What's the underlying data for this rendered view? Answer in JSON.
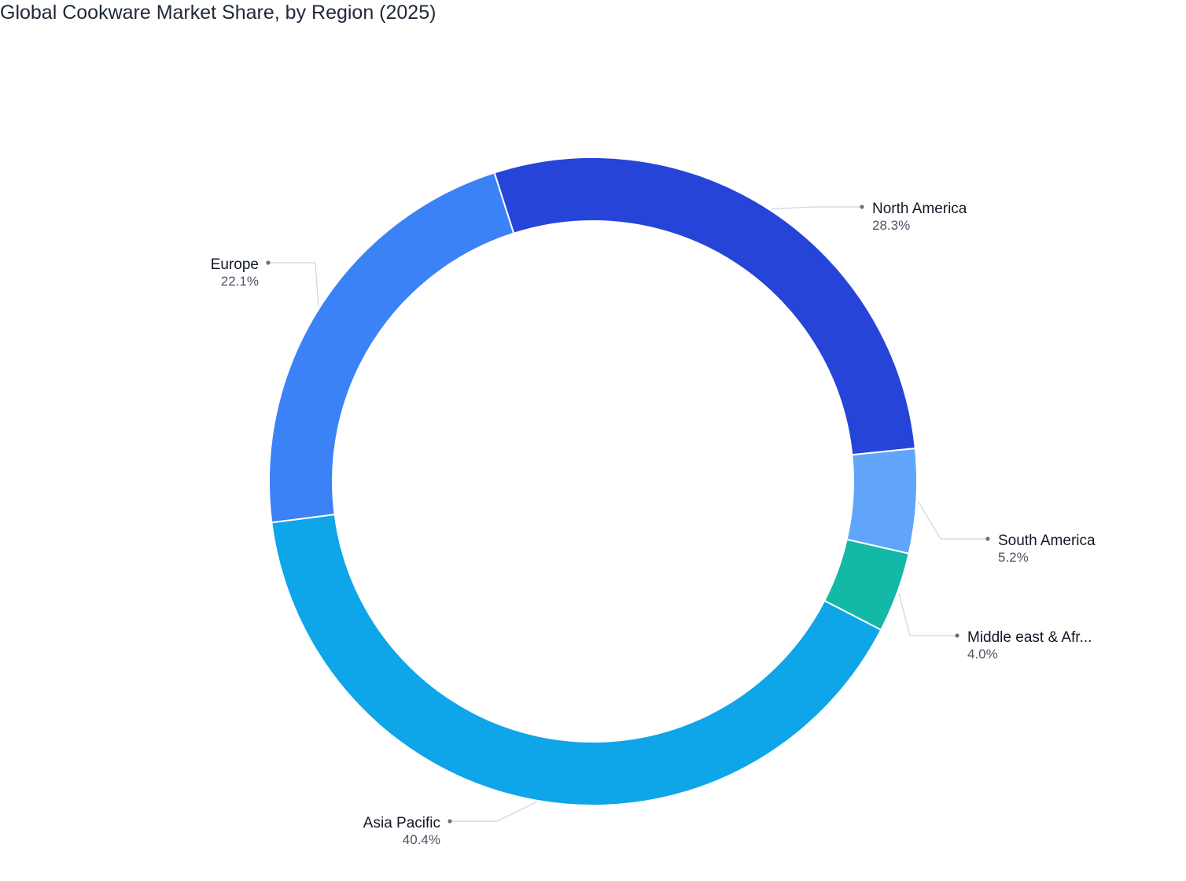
{
  "chart_data": {
    "type": "pie",
    "title": "Global Cookware Market Share, by Region (2025)",
    "hole": true,
    "legend": "none",
    "slices": [
      {
        "label": "North America",
        "value": 28.3,
        "value_label": "28.3%",
        "color": "#2744d8"
      },
      {
        "label": "South America",
        "value": 5.2,
        "value_label": "5.2%",
        "color": "#60a5fa"
      },
      {
        "label": "Middle east & Afr...",
        "value": 4.0,
        "value_label": "4.0%",
        "color": "#14b8a6"
      },
      {
        "label": "Asia Pacific",
        "value": 40.4,
        "value_label": "40.4%",
        "color": "#0ea5e9"
      },
      {
        "label": "Europe",
        "value": 22.1,
        "value_label": "22.1%",
        "color": "#3b82f6"
      }
    ]
  }
}
